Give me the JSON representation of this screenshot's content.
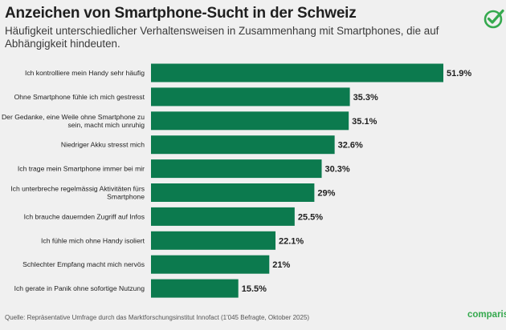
{
  "header": {
    "title": "Anzeichen von Smartphone-Sucht in der Schweiz",
    "subtitle": "Häufigkeit unterschiedlicher Verhaltensweisen in Zusammenhang mit Smartphones, die auf Abhängigkeit hindeuten."
  },
  "footer": {
    "source": "Quelle: Repräsentative Umfrage durch das Marktforschungsinstitut Innofact (1'045 Befragte, Oktober 2025)",
    "brand": "comparis.ch"
  },
  "colors": {
    "bar": "#0c7a4e",
    "background": "#f0f0f0",
    "brand": "#35a94e"
  },
  "icons": {
    "logo": "check-circle-icon"
  },
  "chart_data": {
    "type": "bar",
    "orientation": "horizontal",
    "title": "Anzeichen von Smartphone-Sucht in der Schweiz",
    "subtitle": "Häufigkeit unterschiedlicher Verhaltensweisen in Zusammenhang mit Smartphones, die auf Abhängigkeit hindeuten.",
    "xlim": [
      0,
      51.9
    ],
    "grid": false,
    "categories": [
      [
        "Ich kontrolliere mein Handy sehr häufig"
      ],
      [
        "Ohne Smartphone fühle ich mich gestresst"
      ],
      [
        "Der Gedanke, eine Weile ohne Smartphone zu",
        "sein, macht mich unruhig"
      ],
      [
        "Niedriger Akku stresst mich"
      ],
      [
        "Ich trage mein Smartphone immer bei mir"
      ],
      [
        "Ich unterbreche regelmässig Aktivitäten fürs",
        "Smartphone"
      ],
      [
        "Ich brauche dauernden Zugriff auf Infos"
      ],
      [
        "Ich fühle mich ohne Handy isoliert"
      ],
      [
        "Schlechter Empfang macht mich nervös"
      ],
      [
        "Ich gerate in Panik ohne sofortige Nutzung"
      ]
    ],
    "values": [
      51.9,
      35.3,
      35.1,
      32.6,
      30.3,
      29,
      25.5,
      22.1,
      21,
      15.5
    ],
    "value_labels": [
      "51.9%",
      "35.3%",
      "35.1%",
      "32.6%",
      "30.3%",
      "29%",
      "25.5%",
      "22.1%",
      "21%",
      "15.5%"
    ]
  }
}
